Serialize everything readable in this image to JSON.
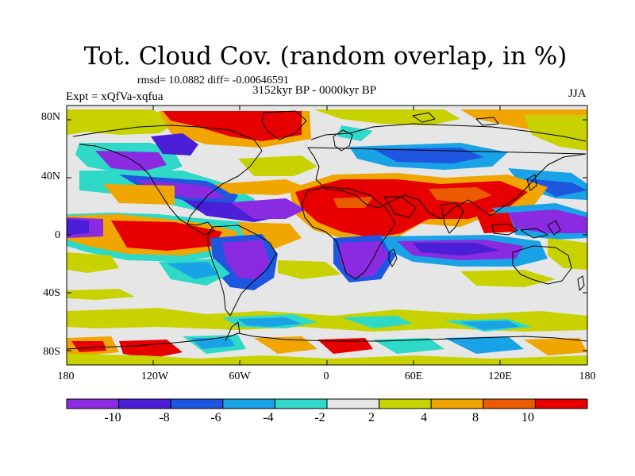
{
  "title": "Tot. Cloud Cov. (random overlap, in %)",
  "stats": "rmsd= 10.0882  diff= -0.00646591",
  "experiment": "Expt = xQfVa-xqfua",
  "period": "3152kyr BP - 0000kyr BP",
  "season": "JJA",
  "lat_ticks": [
    "80N",
    "40N",
    "0",
    "40S",
    "80S"
  ],
  "lon_ticks": [
    "180",
    "120W",
    "60W",
    "0",
    "60E",
    "120E",
    "180"
  ],
  "colorbar": {
    "labels": [
      "-10",
      "-8",
      "-6",
      "-4",
      "-2",
      "2",
      "4",
      "8",
      "10"
    ],
    "colors": [
      "#8a2be2",
      "#4b1ed8",
      "#1e56e0",
      "#1aa2e6",
      "#2fd9c8",
      "#e6e6e6",
      "#c8d200",
      "#f0a500",
      "#ec5a00",
      "#e60000"
    ]
  },
  "map": {
    "projection": "cylindrical equidistant",
    "lon_range": [
      -180,
      180
    ],
    "lat_range": [
      -90,
      90
    ],
    "background_color": "#e6e6e6"
  }
}
